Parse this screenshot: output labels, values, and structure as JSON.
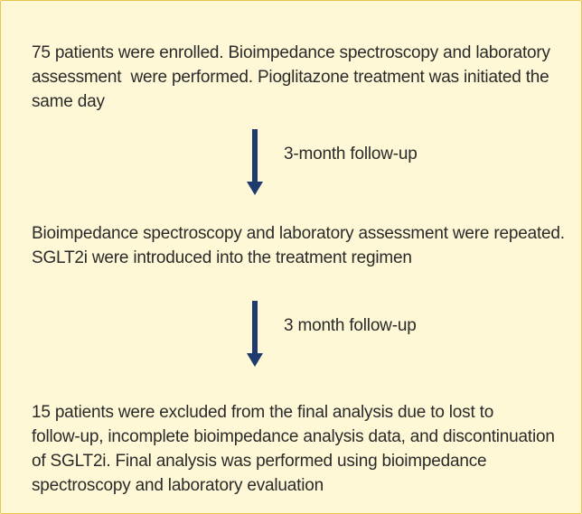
{
  "flow": {
    "step1": "75 patients were enrolled. Bioimpedance spectroscopy and laboratory\nassessment  were performed. Pioglitazone treatment was initiated the\nsame day",
    "transition1": "3-month follow-up",
    "step2": "Bioimpedance spectroscopy and laboratory assessment were repeated.\nSGLT2i were introduced into the treatment regimen",
    "transition2": "3 month follow-up",
    "step3": "15 patients were excluded from the final analysis due to lost to\nfollow-up, incomplete bioimpedance analysis data, and discontinuation\nof SGLT2i. Final analysis was performed using bioimpedance\nspectroscopy and laboratory evaluation"
  },
  "colors": {
    "background": "#fff8d6",
    "border": "#e9c64b",
    "arrow": "#1f3a6e",
    "text": "#2a2a2a"
  }
}
